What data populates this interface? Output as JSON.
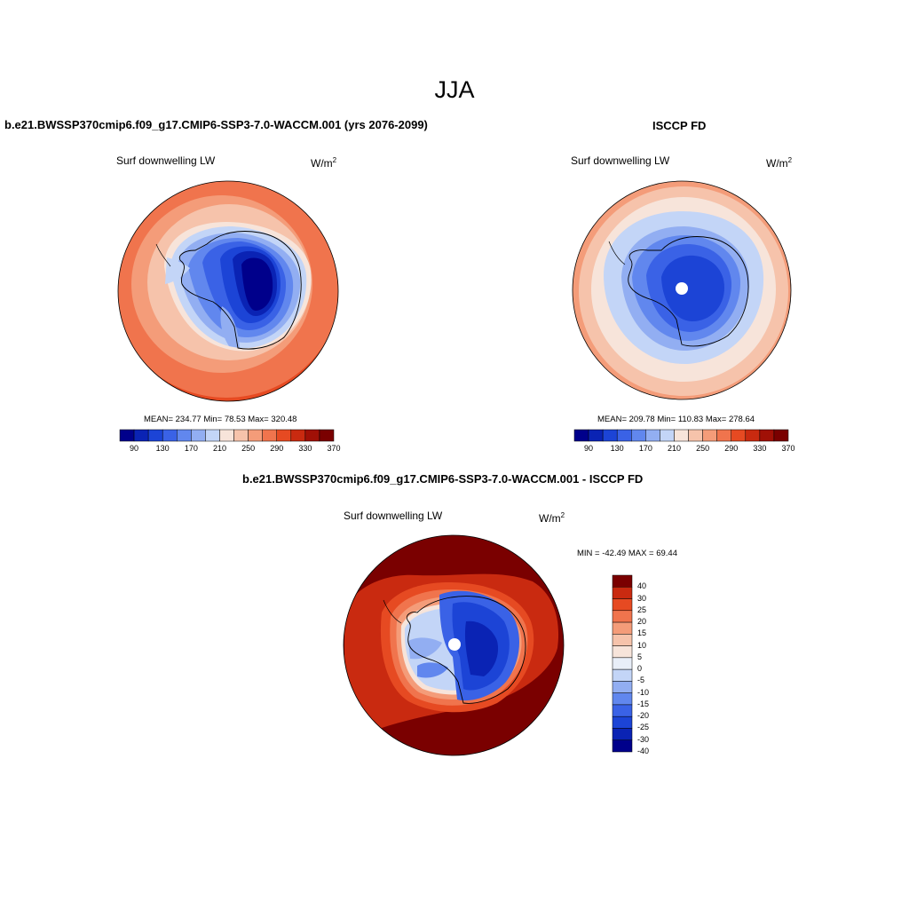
{
  "title": "JJA",
  "panels": {
    "model": {
      "title": "b.e21.BWSSP370cmip6.f09_g17.CMIP6-SSP3-7.0-WACCM.001 (yrs 2076-2099)",
      "variable": "Surf downwelling LW",
      "units": "W/m",
      "units_exp": "2",
      "stats": "MEAN= 234.77  Min=  78.53  Max= 320.48"
    },
    "obs": {
      "title": "ISCCP FD",
      "variable": "Surf downwelling LW",
      "units": "W/m",
      "units_exp": "2",
      "stats": "MEAN= 209.78  Min= 110.83  Max= 278.64"
    },
    "diff": {
      "title": "b.e21.BWSSP370cmip6.f09_g17.CMIP6-SSP3-7.0-WACCM.001 - ISCCP FD",
      "variable": "Surf downwelling LW",
      "units": "W/m",
      "units_exp": "2",
      "stats": "MIN = -42.49 MAX =  69.44"
    }
  },
  "colorbar_main": {
    "colors": [
      "#00008b",
      "#0a23b4",
      "#1c44d6",
      "#3a62e6",
      "#6187ee",
      "#92aef2",
      "#c3d5f7",
      "#f7e4da",
      "#f6c3ab",
      "#f49c79",
      "#f0744d",
      "#e64a22",
      "#c92a10",
      "#a01006",
      "#7a0000"
    ],
    "ticks": [
      "90",
      "130",
      "170",
      "210",
      "250",
      "290",
      "330",
      "370"
    ]
  },
  "colorbar_diff": {
    "colors": [
      "#00008b",
      "#0a23b4",
      "#1c44d6",
      "#3a62e6",
      "#6187ee",
      "#92aef2",
      "#c3d5f7",
      "#e8eef8",
      "#f7e4da",
      "#f6c3ab",
      "#f49c79",
      "#f0744d",
      "#e64a22",
      "#c92a10",
      "#7a0000"
    ],
    "ticks": [
      "40",
      "30",
      "25",
      "20",
      "15",
      "10",
      "5",
      "0",
      "-5",
      "-10",
      "-15",
      "-20",
      "-25",
      "-30",
      "-40"
    ]
  },
  "chart_data": [
    {
      "type": "heatmap",
      "projection": "south polar stereographic",
      "title": "b.e21.BWSSP370cmip6.f09_g17.CMIP6-SSP3-7.0-WACCM.001 (yrs 2076-2099)",
      "variable": "Surf downwelling LW",
      "units": "W/m2",
      "mean": 234.77,
      "min": 78.53,
      "max": 320.48,
      "levels": [
        90,
        110,
        130,
        150,
        170,
        190,
        210,
        230,
        250,
        270,
        290,
        310,
        330,
        350,
        370
      ]
    },
    {
      "type": "heatmap",
      "projection": "south polar stereographic",
      "title": "ISCCP FD",
      "variable": "Surf downwelling LW",
      "units": "W/m2",
      "mean": 209.78,
      "min": 110.83,
      "max": 278.64,
      "levels": [
        90,
        110,
        130,
        150,
        170,
        190,
        210,
        230,
        250,
        270,
        290,
        310,
        330,
        350,
        370
      ]
    },
    {
      "type": "heatmap",
      "projection": "south polar stereographic",
      "title": "b.e21.BWSSP370cmip6.f09_g17.CMIP6-SSP3-7.0-WACCM.001 - ISCCP FD",
      "variable": "Surf downwelling LW",
      "units": "W/m2",
      "min": -42.49,
      "max": 69.44,
      "levels": [
        -40,
        -30,
        -25,
        -20,
        -15,
        -10,
        -5,
        0,
        5,
        10,
        15,
        20,
        25,
        30,
        40
      ]
    }
  ]
}
